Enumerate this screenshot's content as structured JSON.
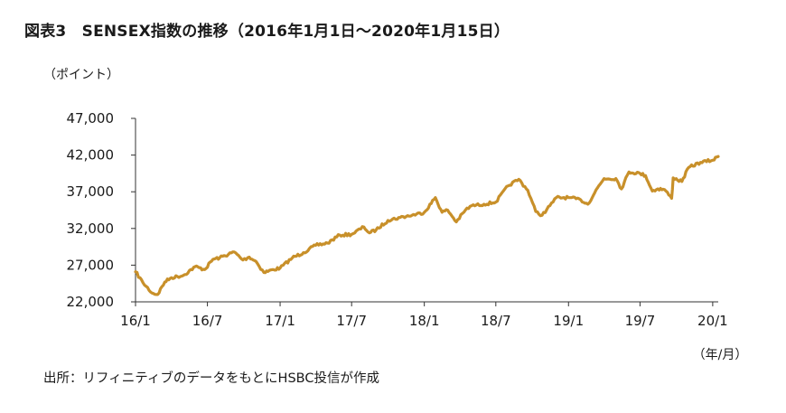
{
  "title": "図表3　SENSEX指数の推移（2016年1月1日～2020年1月15日）",
  "source": "出所：リフィニティブのデータをもとにHSBC投信が作成",
  "chart_data": {
    "type": "line",
    "title": "SENSEX指数の推移（2016年1月1日～2020年1月15日）",
    "ylabel": "（ポイント）",
    "xlabel": "（年/月）",
    "ylim": [
      22000,
      47000
    ],
    "y_ticks": [
      22000,
      27000,
      32000,
      37000,
      42000,
      47000
    ],
    "y_tick_labels": [
      "22,000",
      "27,000",
      "32,000",
      "37,000",
      "42,000",
      "47,000"
    ],
    "x_range": [
      "2016-01-01",
      "2020-01-15"
    ],
    "x_ticks": [
      "2016-01",
      "2016-07",
      "2017-01",
      "2017-07",
      "2018-01",
      "2018-07",
      "2019-01",
      "2019-07",
      "2020-01"
    ],
    "x_tick_labels": [
      "16/1",
      "16/7",
      "17/1",
      "17/7",
      "18/1",
      "18/7",
      "19/1",
      "19/7",
      "20/1"
    ],
    "grid": false,
    "line_color": "#c8902a",
    "series": [
      {
        "x": [
          "2016-01-01",
          "2016-01-20",
          "2016-02-12",
          "2016-02-26",
          "2016-03-15",
          "2016-04-01",
          "2016-05-01",
          "2016-05-31",
          "2016-06-24",
          "2016-07-15",
          "2016-08-01",
          "2016-09-07",
          "2016-09-29",
          "2016-10-15",
          "2016-11-01",
          "2016-11-21",
          "2016-12-15",
          "2017-01-01",
          "2017-02-01",
          "2017-03-01",
          "2017-04-01",
          "2017-05-01",
          "2017-06-01",
          "2017-07-01",
          "2017-08-01",
          "2017-08-15",
          "2017-09-01",
          "2017-10-01",
          "2017-11-01",
          "2017-12-01",
          "2018-01-01",
          "2018-01-29",
          "2018-02-15",
          "2018-03-01",
          "2018-03-23",
          "2018-04-15",
          "2018-05-01",
          "2018-06-01",
          "2018-07-01",
          "2018-08-01",
          "2018-08-28",
          "2018-09-20",
          "2018-10-10",
          "2018-10-26",
          "2018-11-15",
          "2018-12-01",
          "2019-01-01",
          "2019-02-01",
          "2019-02-19",
          "2019-03-15",
          "2019-04-01",
          "2019-05-01",
          "2019-05-15",
          "2019-06-03",
          "2019-07-01",
          "2019-07-15",
          "2019-08-01",
          "2019-08-15",
          "2019-09-01",
          "2019-09-19",
          "2019-09-23",
          "2019-10-15",
          "2019-11-01",
          "2019-12-01",
          "2020-01-01",
          "2020-01-15"
        ],
        "y": [
          26100,
          24600,
          23200,
          23000,
          24700,
          25300,
          25600,
          26800,
          26400,
          27800,
          28000,
          28800,
          27700,
          28100,
          27500,
          26000,
          26400,
          26600,
          28000,
          28700,
          29700,
          30000,
          31100,
          31200,
          32200,
          31400,
          31800,
          33100,
          33500,
          33800,
          34200,
          36200,
          34200,
          34500,
          32900,
          34500,
          35100,
          35300,
          35600,
          37800,
          38700,
          37200,
          34300,
          33800,
          35100,
          36200,
          36200,
          35900,
          35300,
          37500,
          38800,
          38800,
          37400,
          39700,
          39500,
          39200,
          37100,
          37400,
          37300,
          36100,
          38900,
          38400,
          40300,
          41000,
          41300,
          41800
        ]
      }
    ]
  }
}
